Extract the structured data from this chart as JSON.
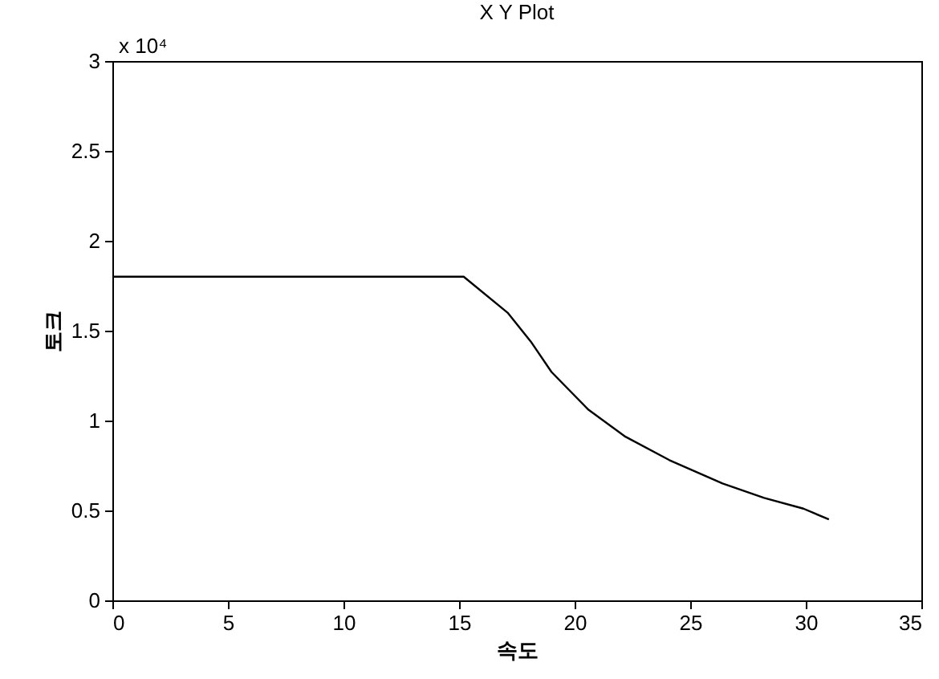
{
  "chart_data": {
    "type": "line",
    "title": "X Y Plot",
    "xlabel": "속도",
    "ylabel": "토크",
    "annotations": [
      "x 10⁴"
    ],
    "x": [
      0,
      5,
      10,
      15.2,
      17.1,
      18.1,
      19,
      20.6,
      22.2,
      24.1,
      26.4,
      28.2,
      29.9,
      31
    ],
    "series": [
      {
        "color": "#000000",
        "values": [
          1.8,
          1.8,
          1.8,
          1.8,
          1.6,
          1.44,
          1.27,
          1.06,
          0.91,
          0.78,
          0.65,
          0.57,
          0.51,
          0.45
        ]
      }
    ],
    "xlim": [
      0,
      35
    ],
    "xticks": [
      0,
      5,
      10,
      15,
      20,
      25,
      30,
      35
    ],
    "ylim": [
      0,
      3
    ],
    "yticks": [
      0,
      0.5,
      1,
      1.5,
      2,
      2.5,
      3
    ],
    "grid": false,
    "marker": "none",
    "line_style": "solid"
  }
}
